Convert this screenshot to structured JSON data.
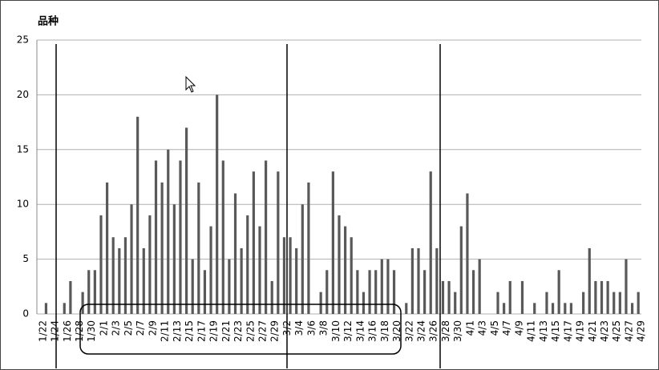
{
  "chart_data": {
    "type": "bar",
    "title": "品种",
    "categories": [
      "1/22",
      null,
      "1/24",
      null,
      "1/26",
      null,
      "1/28",
      null,
      "1/30",
      null,
      "2/1",
      null,
      "2/3",
      null,
      "2/5",
      null,
      "2/7",
      null,
      "2/9",
      null,
      "2/11",
      null,
      "2/13",
      null,
      "2/15",
      null,
      "2/17",
      null,
      "2/19",
      null,
      "2/21",
      null,
      "2/23",
      null,
      "2/25",
      null,
      "2/27",
      null,
      "2/29",
      null,
      "3/2",
      null,
      "3/4",
      null,
      "3/6",
      null,
      "3/8",
      null,
      "3/10",
      null,
      "3/12",
      null,
      "3/14",
      null,
      "3/16",
      null,
      "3/18",
      null,
      "3/20",
      null,
      "3/22",
      null,
      "3/24",
      null,
      "3/26",
      null,
      "3/28",
      null,
      "3/30",
      null,
      "4/1",
      null,
      "4/3",
      null,
      "4/5",
      null,
      "4/7",
      null,
      "4/9",
      null,
      "4/11",
      null,
      "4/13",
      null,
      "4/15",
      null,
      "4/17",
      null,
      "4/19",
      null,
      "4/21",
      null,
      "4/23",
      null,
      "4/25",
      null,
      "4/27",
      null,
      "4/29"
    ],
    "values": [
      0,
      1,
      0,
      0,
      1,
      3,
      0,
      2,
      4,
      4,
      9,
      12,
      7,
      6,
      7,
      10,
      18,
      6,
      9,
      14,
      12,
      15,
      10,
      14,
      17,
      5,
      12,
      4,
      8,
      20,
      14,
      5,
      11,
      6,
      9,
      13,
      8,
      14,
      3,
      13,
      7,
      7,
      6,
      10,
      12,
      0,
      2,
      4,
      13,
      9,
      8,
      7,
      4,
      2,
      4,
      4,
      5,
      5,
      4,
      0,
      1,
      6,
      6,
      4,
      13,
      6,
      3,
      3,
      2,
      8,
      11,
      4,
      5,
      0,
      0,
      2,
      1,
      3,
      0,
      3,
      0,
      1,
      0,
      2,
      1,
      4,
      1,
      1,
      0,
      2,
      6,
      3,
      3,
      3,
      2,
      2,
      5,
      1,
      2
    ],
    "color": "#595959",
    "ylim": [
      0,
      25
    ],
    "yticks": [
      0,
      5,
      10,
      15,
      20,
      25
    ],
    "grid": true
  }
}
